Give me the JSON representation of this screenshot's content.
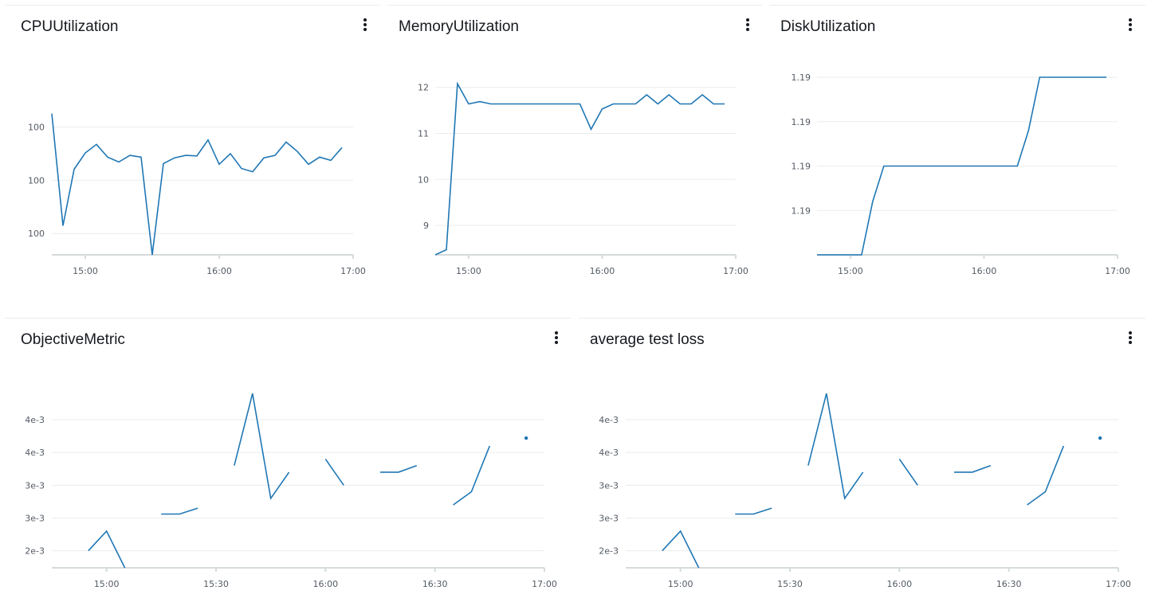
{
  "panels": [
    {
      "title": "CPUUtilization",
      "menu_icon": "vertical-ellipsis-icon"
    },
    {
      "title": "MemoryUtilization",
      "menu_icon": "vertical-ellipsis-icon"
    },
    {
      "title": "DiskUtilization",
      "menu_icon": "vertical-ellipsis-icon"
    },
    {
      "title": "ObjectiveMetric",
      "menu_icon": "vertical-ellipsis-icon"
    },
    {
      "title": "average test loss",
      "menu_icon": "vertical-ellipsis-icon"
    }
  ],
  "colors": {
    "line": "#1f77b4",
    "grid": "#eaeded",
    "axis": "#d5dbdb"
  },
  "chart_data": [
    {
      "type": "line",
      "title": "CPUUtilization",
      "xlim": [
        "14:45",
        "17:00"
      ],
      "ylim": [
        0,
        100
      ],
      "x_ticks": [
        "15:00",
        "16:00",
        "17:00"
      ],
      "y_ticks": [
        {
          "value": 12,
          "label": "100"
        },
        {
          "value": 42,
          "label": "100"
        },
        {
          "value": 72,
          "label": "100"
        }
      ],
      "grid": true,
      "series": [
        {
          "x": [
            "14:45",
            "14:50",
            "14:55",
            "15:00",
            "15:05",
            "15:10",
            "15:15",
            "15:20",
            "15:25",
            "15:30",
            "15:35",
            "15:40",
            "15:45",
            "15:50",
            "15:55",
            "16:00",
            "16:05",
            "16:10",
            "16:15",
            "16:20",
            "16:25",
            "16:30",
            "16:35",
            "16:40",
            "16:45",
            "16:50",
            "16:55"
          ],
          "y": [
            79.5,
            16.4,
            48.2,
            57.4,
            62.2,
            55.0,
            52.3,
            56.0,
            55.0,
            0,
            51.4,
            54.6,
            56.0,
            55.7,
            64.7,
            51.0,
            57.0,
            48.6,
            46.8,
            54.6,
            56.0,
            63.5,
            58.2,
            51.0,
            55.0,
            53.2,
            60.4
          ],
          "gaps": []
        }
      ]
    },
    {
      "type": "line",
      "title": "MemoryUtilization",
      "xlim": [
        "14:45",
        "17:00"
      ],
      "ylim": [
        8.36,
        12.22
      ],
      "x_ticks": [
        "15:00",
        "16:00",
        "17:00"
      ],
      "y_ticks": [
        {
          "value": 9,
          "label": "9"
        },
        {
          "value": 10,
          "label": "10"
        },
        {
          "value": 11,
          "label": "11"
        },
        {
          "value": 12,
          "label": "12"
        }
      ],
      "grid": true,
      "series": [
        {
          "x": [
            "14:45",
            "14:50",
            "14:55",
            "15:00",
            "15:05",
            "15:10",
            "15:15",
            "15:20",
            "15:25",
            "15:30",
            "15:35",
            "15:40",
            "15:45",
            "15:50",
            "15:55",
            "16:00",
            "16:05",
            "16:10",
            "16:15",
            "16:20",
            "16:25",
            "16:30",
            "16:35",
            "16:40",
            "16:45",
            "16:50",
            "16:55"
          ],
          "y": [
            8.36,
            8.47,
            12.08,
            11.64,
            11.69,
            11.64,
            11.64,
            11.64,
            11.64,
            11.64,
            11.64,
            11.64,
            11.64,
            11.64,
            11.09,
            11.53,
            11.64,
            11.64,
            11.64,
            11.84,
            11.64,
            11.84,
            11.64,
            11.64,
            11.84,
            11.64,
            11.64
          ],
          "gaps": []
        }
      ]
    },
    {
      "type": "line",
      "title": "DiskUtilization",
      "xlim": [
        "14:45",
        "17:00"
      ],
      "ylim": [
        0,
        100
      ],
      "x_ticks": [
        "15:00",
        "16:00",
        "17:00"
      ],
      "y_ticks": [
        {
          "value": 25,
          "label": "1.19"
        },
        {
          "value": 50,
          "label": "1.19"
        },
        {
          "value": 75,
          "label": "1.19"
        },
        {
          "value": 100,
          "label": "1.19"
        }
      ],
      "grid": true,
      "series": [
        {
          "x": [
            "14:45",
            "14:50",
            "14:55",
            "15:00",
            "15:05",
            "15:10",
            "15:15",
            "15:20",
            "15:25",
            "15:30",
            "15:35",
            "15:40",
            "15:45",
            "15:50",
            "15:55",
            "16:00",
            "16:05",
            "16:10",
            "16:15",
            "16:20",
            "16:25",
            "16:30",
            "16:35",
            "16:40",
            "16:45",
            "16:50",
            "16:55"
          ],
          "y": [
            0,
            0,
            0,
            0,
            0,
            30,
            50,
            50,
            50,
            50,
            50,
            50,
            50,
            50,
            50,
            50,
            50,
            50,
            50,
            70,
            100,
            100,
            100,
            100,
            100,
            100,
            100
          ],
          "gaps": []
        }
      ]
    },
    {
      "type": "line",
      "title": "ObjectiveMetric",
      "xlim": [
        "14:45",
        "17:00"
      ],
      "ylim": [
        0.00194,
        0.00465
      ],
      "x_ticks": [
        "15:00",
        "15:30",
        "16:00",
        "16:30",
        "17:00"
      ],
      "y_ticks": [
        {
          "value": 0.0022,
          "label": "2e-3"
        },
        {
          "value": 0.0027,
          "label": "3e-3"
        },
        {
          "value": 0.0032,
          "label": "3e-3"
        },
        {
          "value": 0.0037,
          "label": "4e-3"
        },
        {
          "value": 0.0042,
          "label": "4e-3"
        }
      ],
      "grid": true,
      "series": [
        {
          "x": [
            "14:55",
            "15:00",
            "15:05",
            "15:15",
            "15:20",
            "15:25",
            "15:35",
            "15:40",
            "15:45",
            "15:50",
            "16:00",
            "16:05",
            "16:15",
            "16:20",
            "16:25",
            "16:35",
            "16:40",
            "16:45",
            "16:55"
          ],
          "y": [
            0.0022,
            0.0025,
            0.00194,
            0.00276,
            0.00276,
            0.00285,
            0.0035,
            0.0046,
            0.003,
            0.0034,
            0.0036,
            0.0032,
            0.0034,
            0.0034,
            0.0035,
            0.0029,
            0.0031,
            0.0038,
            0.00392
          ],
          "segments": [
            [
              0,
              2
            ],
            [
              3,
              5
            ],
            [
              6,
              9
            ],
            [
              10,
              11
            ],
            [
              12,
              14
            ],
            [
              15,
              17
            ],
            [
              18,
              18
            ]
          ]
        }
      ]
    },
    {
      "type": "line",
      "title": "average test loss",
      "xlim": [
        "14:45",
        "17:00"
      ],
      "ylim": [
        0.00194,
        0.00465
      ],
      "x_ticks": [
        "15:00",
        "15:30",
        "16:00",
        "16:30",
        "17:00"
      ],
      "y_ticks": [
        {
          "value": 0.0022,
          "label": "2e-3"
        },
        {
          "value": 0.0027,
          "label": "3e-3"
        },
        {
          "value": 0.0032,
          "label": "3e-3"
        },
        {
          "value": 0.0037,
          "label": "4e-3"
        },
        {
          "value": 0.0042,
          "label": "4e-3"
        }
      ],
      "grid": true,
      "series": [
        {
          "x": [
            "14:55",
            "15:00",
            "15:05",
            "15:15",
            "15:20",
            "15:25",
            "15:35",
            "15:40",
            "15:45",
            "15:50",
            "16:00",
            "16:05",
            "16:15",
            "16:20",
            "16:25",
            "16:35",
            "16:40",
            "16:45",
            "16:55"
          ],
          "y": [
            0.0022,
            0.0025,
            0.00194,
            0.00276,
            0.00276,
            0.00285,
            0.0035,
            0.0046,
            0.003,
            0.0034,
            0.0036,
            0.0032,
            0.0034,
            0.0034,
            0.0035,
            0.0029,
            0.0031,
            0.0038,
            0.00392
          ],
          "segments": [
            [
              0,
              2
            ],
            [
              3,
              5
            ],
            [
              6,
              9
            ],
            [
              10,
              11
            ],
            [
              12,
              14
            ],
            [
              15,
              17
            ],
            [
              18,
              18
            ]
          ]
        }
      ]
    }
  ]
}
